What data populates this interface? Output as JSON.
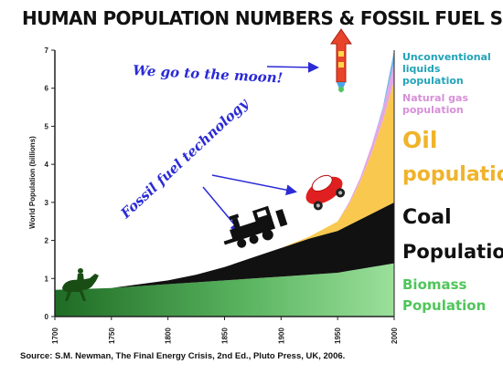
{
  "title": "HUMAN POPULATION NUMBERS & FOSSIL FUEL SUPPLY",
  "source": "Source: S.M. Newman, The Final Energy Crisis, 2nd Ed., Pluto Press, UK, 2006.",
  "annotations": {
    "moon": "We go to the moon!",
    "fossil": "Fossil fuel technology"
  },
  "colors": {
    "biomass": "#8fd68f",
    "biomass_dark": "#2e7d32",
    "coal": "#111111",
    "oil": "#f9c84e",
    "natural_gas": "#e6a6e6",
    "unconventional": "#6fb8e8",
    "annotation": "#2b2bd6",
    "oil_label": "#f0b32a",
    "biomass_label": "#4fc65a",
    "gas_label": "#d88fd8",
    "uncon_label": "#22a3b8",
    "rocket": "#e8442a"
  },
  "icons": [
    "horse-rider-icon",
    "steam-train-icon",
    "car-icon",
    "rocket-icon"
  ],
  "chart_data": {
    "type": "area",
    "stacked": true,
    "xlabel": "",
    "ylabel": "World Population (billions)",
    "xlim": [
      1700,
      2000
    ],
    "ylim": [
      0,
      7
    ],
    "x_ticks": [
      1700,
      1750,
      1800,
      1850,
      1900,
      1950,
      2000
    ],
    "y_ticks": [
      0,
      1,
      2,
      3,
      4,
      5,
      6,
      7
    ],
    "grid": false,
    "x": [
      1700,
      1750,
      1800,
      1825,
      1850,
      1875,
      1900,
      1925,
      1950,
      1960,
      1970,
      1980,
      1990,
      2000
    ],
    "series": [
      {
        "name": "Biomass Population",
        "values": [
          0.7,
          0.75,
          0.85,
          0.9,
          0.95,
          1.0,
          1.05,
          1.1,
          1.15,
          1.2,
          1.25,
          1.3,
          1.35,
          1.4
        ]
      },
      {
        "name": "Coal Population",
        "values": [
          0.0,
          0.0,
          0.1,
          0.2,
          0.35,
          0.55,
          0.75,
          0.95,
          1.1,
          1.2,
          1.3,
          1.4,
          1.5,
          1.6
        ]
      },
      {
        "name": "Oil population",
        "values": [
          0.0,
          0.0,
          0.0,
          0.0,
          0.0,
          0.0,
          0.0,
          0.05,
          0.25,
          0.55,
          1.0,
          1.6,
          2.3,
          3.2
        ]
      },
      {
        "name": "Natural gas population",
        "values": [
          0.0,
          0.0,
          0.0,
          0.0,
          0.0,
          0.0,
          0.0,
          0.0,
          0.0,
          0.05,
          0.1,
          0.2,
          0.3,
          0.5
        ]
      },
      {
        "name": "Unconventional liquids population",
        "values": [
          0.0,
          0.0,
          0.0,
          0.0,
          0.0,
          0.0,
          0.0,
          0.0,
          0.0,
          0.0,
          0.0,
          0.0,
          0.05,
          0.3
        ]
      }
    ]
  }
}
